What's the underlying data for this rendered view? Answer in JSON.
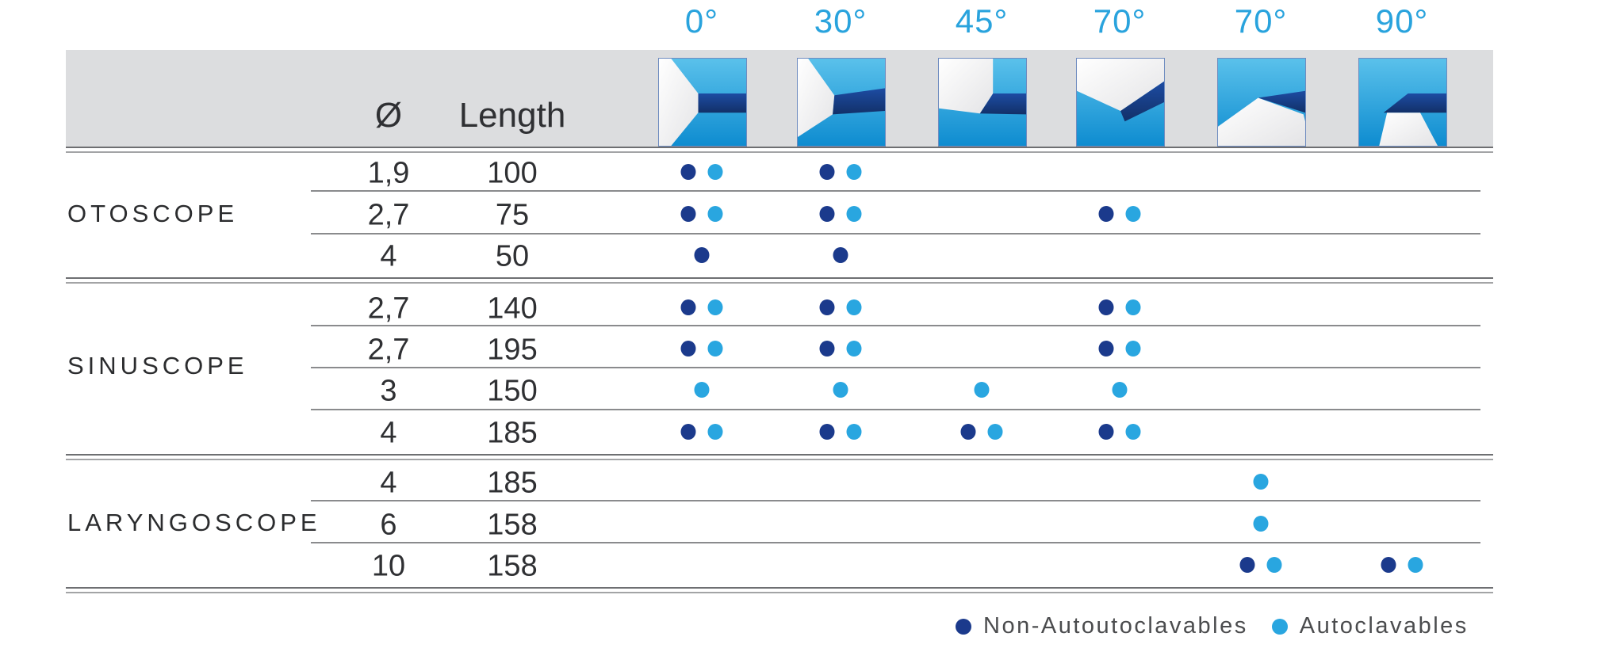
{
  "header": {
    "diameter_label": "Ø",
    "length_label": "Length",
    "angle_columns": [
      {
        "label": "0°",
        "icon": "angle-0-icon"
      },
      {
        "label": "30°",
        "icon": "angle-30-icon"
      },
      {
        "label": "45°",
        "icon": "angle-45-icon"
      },
      {
        "label": "70°",
        "icon": "angle-70-icon"
      },
      {
        "label": "70°",
        "icon": "angle-70b-icon"
      },
      {
        "label": "90°",
        "icon": "angle-90-icon"
      }
    ]
  },
  "sections": [
    {
      "name": "OTOSCOPE",
      "rows": [
        {
          "diameter": "1,9",
          "length": "100",
          "availability": [
            {
              "col": 0,
              "types": [
                "non-autoclavable",
                "autoclavable"
              ]
            },
            {
              "col": 1,
              "types": [
                "non-autoclavable",
                "autoclavable"
              ]
            }
          ]
        },
        {
          "diameter": "2,7",
          "length": "75",
          "availability": [
            {
              "col": 0,
              "types": [
                "non-autoclavable",
                "autoclavable"
              ]
            },
            {
              "col": 1,
              "types": [
                "non-autoclavable",
                "autoclavable"
              ]
            },
            {
              "col": 3,
              "types": [
                "non-autoclavable",
                "autoclavable"
              ]
            }
          ]
        },
        {
          "diameter": "4",
          "length": "50",
          "availability": [
            {
              "col": 0,
              "types": [
                "non-autoclavable"
              ]
            },
            {
              "col": 1,
              "types": [
                "non-autoclavable"
              ]
            }
          ]
        }
      ]
    },
    {
      "name": "SINUSCOPE",
      "rows": [
        {
          "diameter": "2,7",
          "length": "140",
          "availability": [
            {
              "col": 0,
              "types": [
                "non-autoclavable",
                "autoclavable"
              ]
            },
            {
              "col": 1,
              "types": [
                "non-autoclavable",
                "autoclavable"
              ]
            },
            {
              "col": 3,
              "types": [
                "non-autoclavable",
                "autoclavable"
              ]
            }
          ]
        },
        {
          "diameter": "2,7",
          "length": "195",
          "availability": [
            {
              "col": 0,
              "types": [
                "non-autoclavable",
                "autoclavable"
              ]
            },
            {
              "col": 1,
              "types": [
                "non-autoclavable",
                "autoclavable"
              ]
            },
            {
              "col": 3,
              "types": [
                "non-autoclavable",
                "autoclavable"
              ]
            }
          ]
        },
        {
          "diameter": "3",
          "length": "150",
          "availability": [
            {
              "col": 0,
              "types": [
                "autoclavable"
              ]
            },
            {
              "col": 1,
              "types": [
                "autoclavable"
              ]
            },
            {
              "col": 2,
              "types": [
                "autoclavable"
              ]
            },
            {
              "col": 3,
              "types": [
                "autoclavable"
              ]
            }
          ]
        },
        {
          "diameter": "4",
          "length": "185",
          "availability": [
            {
              "col": 0,
              "types": [
                "non-autoclavable",
                "autoclavable"
              ]
            },
            {
              "col": 1,
              "types": [
                "non-autoclavable",
                "autoclavable"
              ]
            },
            {
              "col": 2,
              "types": [
                "non-autoclavable",
                "autoclavable"
              ]
            },
            {
              "col": 3,
              "types": [
                "non-autoclavable",
                "autoclavable"
              ]
            }
          ]
        }
      ]
    },
    {
      "name": "LARYNGOSCOPE",
      "rows": [
        {
          "diameter": "4",
          "length": "185",
          "availability": [
            {
              "col": 4,
              "types": [
                "autoclavable"
              ]
            }
          ]
        },
        {
          "diameter": "6",
          "length": "158",
          "availability": [
            {
              "col": 4,
              "types": [
                "autoclavable"
              ]
            }
          ]
        },
        {
          "diameter": "10",
          "length": "158",
          "availability": [
            {
              "col": 4,
              "types": [
                "non-autoclavable",
                "autoclavable"
              ]
            },
            {
              "col": 5,
              "types": [
                "non-autoclavable",
                "autoclavable"
              ]
            }
          ]
        }
      ]
    }
  ],
  "legend": {
    "non_autoclavable": "Non-Autoutoclavables",
    "autoclavable": "Autoclavables"
  },
  "colors": {
    "non_autoclavable": "#1B3A8C",
    "autoclavable": "#29A6E0",
    "angle_label": "#29A3DD",
    "header_band": "#DCDDDF"
  }
}
